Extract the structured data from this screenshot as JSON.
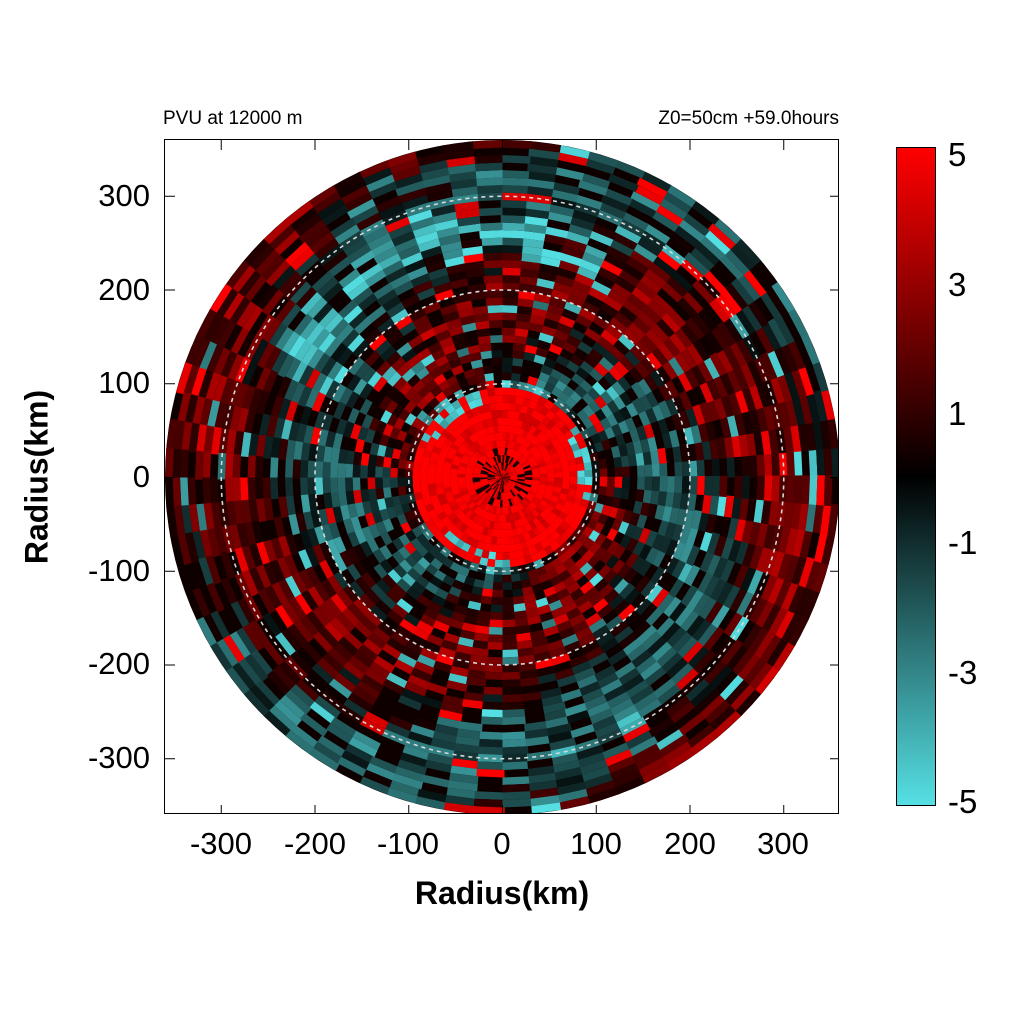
{
  "header": {
    "left_title": "PVU at 12000 m",
    "right_title": "Z0=50cm  +59.0hours"
  },
  "colorbar": {
    "labels": [
      "5",
      "3",
      "1",
      "-1",
      "-3",
      "-5"
    ],
    "range": [
      -5,
      5
    ],
    "colors": {
      "max": "#ff0000",
      "mid": "#000000",
      "min": "#55e0e4"
    }
  },
  "chart_data": {
    "type": "heatmap",
    "projection": "polar field on cartesian axes",
    "title": "PVU at 12000 m",
    "subtitle": "Z0=50cm  +59.0hours",
    "xlabel": "Radius(km)",
    "ylabel": "Radius(km)",
    "xlim": [
      -360,
      360
    ],
    "ylim": [
      -360,
      360
    ],
    "xticks": [
      -300,
      -200,
      -100,
      0,
      100,
      200,
      300
    ],
    "yticks": [
      -300,
      -200,
      -100,
      0,
      100,
      200,
      300
    ],
    "xtick_labels": [
      "-300",
      "-200",
      "-100",
      "0",
      "100",
      "200",
      "300"
    ],
    "ytick_labels": [
      "300",
      "200",
      "100",
      "0",
      "-100",
      "-200",
      "-300"
    ],
    "data_radius_km": 360,
    "reference_circles_km": [
      100,
      200,
      300
    ],
    "value_range": [
      -5,
      5
    ],
    "features": [
      {
        "region": "core",
        "r_km": [
          0,
          100
        ],
        "value": 5
      },
      {
        "region": "inner-ring-negative",
        "r_km": [
          80,
          110
        ],
        "value": -4
      },
      {
        "region": "outer-band",
        "r_km": [
          100,
          360
        ],
        "value": 1
      }
    ]
  }
}
